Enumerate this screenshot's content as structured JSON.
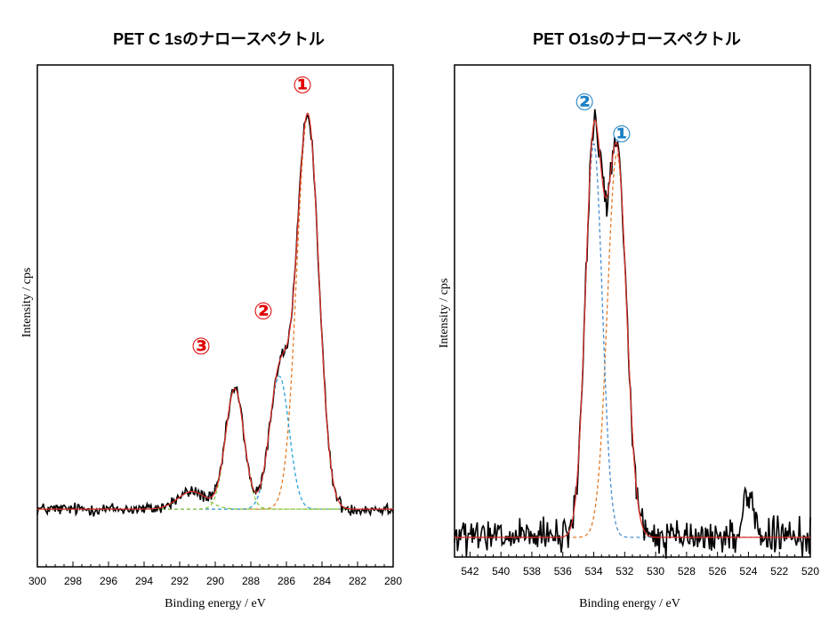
{
  "figure": {
    "description_free": true
  },
  "colors": {
    "frame": "#000000",
    "measured": "#000000",
    "envelope": "#e0312b",
    "c1s_peak1": "#e07b27",
    "c1s_peak2": "#29a3d8",
    "c1s_peak3": "#8dc63f",
    "o1s_peak1": "#e07b27",
    "o1s_peak2": "#4a8fd0",
    "ann_red": "#e00000",
    "ann_blue": "#1a7fc4"
  },
  "chart_data": [
    {
      "type": "line",
      "title": "PET C 1sのナロースペクトル",
      "xlabel": "Binding energy / eV",
      "ylabel": "Intensity / cps",
      "xlim": [
        300,
        280
      ],
      "x_reversed": true,
      "ylim": [
        0,
        1
      ],
      "x_ticks": [
        300,
        298,
        296,
        294,
        292,
        290,
        288,
        286,
        284,
        282,
        280
      ],
      "baseline": 0.115,
      "noise_sd": 0.008,
      "fit_components": [
        {
          "name": "①",
          "center": 284.8,
          "height": 0.785,
          "sigma": 0.62,
          "color_key": "c1s_peak1"
        },
        {
          "name": "②",
          "center": 286.4,
          "height": 0.265,
          "sigma": 0.55,
          "color_key": "c1s_peak2"
        },
        {
          "name": "③",
          "center": 288.9,
          "height": 0.24,
          "sigma": 0.52,
          "color_key": "c1s_peak3"
        },
        {
          "name": "shake-up",
          "center": 291.3,
          "height": 0.035,
          "sigma": 0.8,
          "color_key": "c1s_peak3"
        }
      ],
      "annotations": [
        {
          "label": "①",
          "x": 285.1,
          "y": 0.96,
          "color_key": "ann_red"
        },
        {
          "label": "②",
          "x": 287.3,
          "y": 0.51,
          "color_key": "ann_red"
        },
        {
          "label": "③",
          "x": 290.8,
          "y": 0.44,
          "color_key": "ann_red"
        }
      ]
    },
    {
      "type": "line",
      "title": "PET O1sのナロースペクトル",
      "xlabel": "Binding energy / eV",
      "ylabel": "Intensity / cps",
      "xlim": [
        543,
        520
      ],
      "x_reversed": true,
      "ylim": [
        0,
        1
      ],
      "x_ticks": [
        542,
        540,
        538,
        536,
        534,
        532,
        530,
        528,
        526,
        524,
        522,
        520
      ],
      "baseline": 0.04,
      "noise_sd": 0.022,
      "fit_components": [
        {
          "name": "①",
          "center": 532.5,
          "height": 0.78,
          "sigma": 0.62,
          "color_key": "o1s_peak1"
        },
        {
          "name": "②",
          "center": 534.0,
          "height": 0.8,
          "sigma": 0.55,
          "color_key": "o1s_peak2"
        }
      ],
      "noise_bump": {
        "center": 524.0,
        "height": 0.09,
        "sigma": 0.35
      },
      "annotations": [
        {
          "label": "②",
          "x": 534.6,
          "y": 0.925,
          "color_key": "ann_blue"
        },
        {
          "label": "①",
          "x": 532.2,
          "y": 0.86,
          "color_key": "ann_blue"
        }
      ]
    }
  ]
}
